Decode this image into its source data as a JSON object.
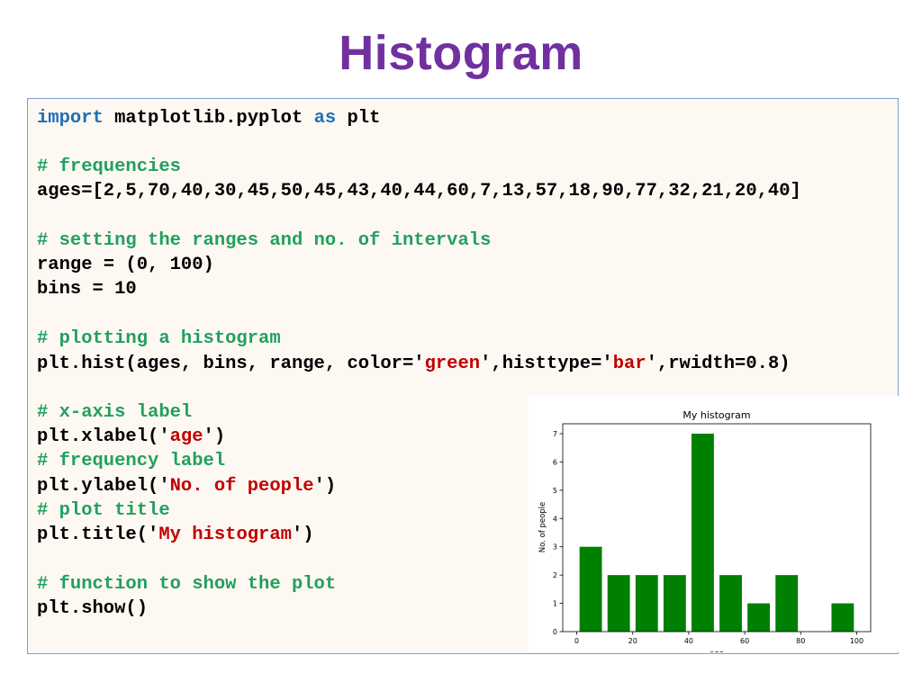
{
  "title": "Histogram",
  "code": {
    "import_kw": "import",
    "import_mod": " matplotlib.pyplot ",
    "as_kw": "as",
    "import_alias": " plt",
    "comment_frequencies": "# frequencies",
    "ages_line": "ages=[2,5,70,40,30,45,50,45,43,40,44,60,7,13,57,18,90,77,32,21,20,40]",
    "comment_ranges": "# setting the ranges and no. of intervals",
    "range_line": "range = (0, 100)",
    "bins_line": "bins = 10",
    "comment_plotting": "# plotting a histogram",
    "hist_part1": "plt.hist(ages, bins, range, color='",
    "hist_color": "green",
    "hist_part2": "',histtype='",
    "hist_type": "bar",
    "hist_part3": "',rwidth=0.8)",
    "comment_xlabel": "# x-axis label",
    "xlabel_part1": "plt.xlabel('",
    "xlabel_value": "age",
    "xlabel_part2": "')",
    "comment_ylabel": "# frequency label",
    "ylabel_part1": "plt.ylabel('",
    "ylabel_value": "No. of people",
    "ylabel_part2": "')",
    "comment_title": "# plot title",
    "title_part1": "plt.title('",
    "title_value": "My histogram",
    "title_part2": "')",
    "comment_show": "# function to show the plot",
    "show_line": "plt.show()"
  },
  "chart_data": {
    "type": "bar",
    "title": "My histogram",
    "xlabel": "age",
    "ylabel": "No. of people",
    "bin_edges": [
      0,
      10,
      20,
      30,
      40,
      50,
      60,
      70,
      80,
      90,
      100
    ],
    "values": [
      3,
      2,
      2,
      2,
      7,
      2,
      1,
      2,
      0,
      1
    ],
    "rwidth": 0.8,
    "bar_color": "#008000",
    "xlim": [
      -5,
      105
    ],
    "ylim": [
      0,
      7.35
    ],
    "xticks": [
      0,
      20,
      40,
      60,
      80,
      100
    ],
    "yticks": [
      0,
      1,
      2,
      3,
      4,
      5,
      6,
      7
    ],
    "grid": false
  }
}
